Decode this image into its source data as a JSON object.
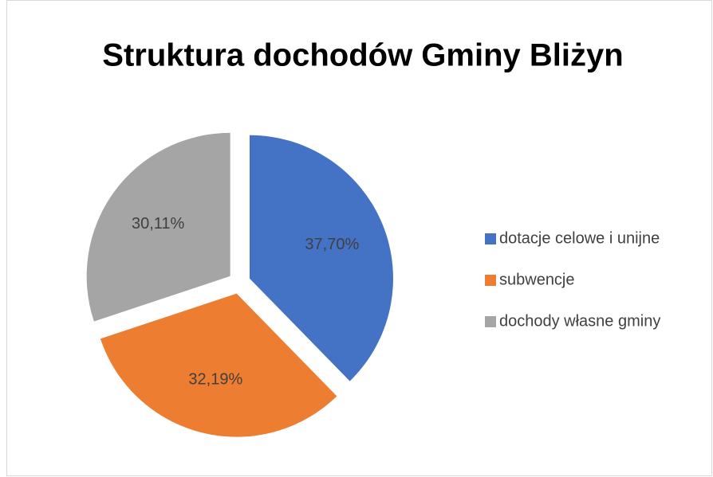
{
  "chart_data": {
    "type": "pie",
    "title": "Struktura dochodów Gminy Bliżyn",
    "categories": [
      "dotacje celowe i unijne",
      "subwencje",
      "dochody własne gminy"
    ],
    "values": [
      37.7,
      32.19,
      30.11
    ],
    "value_labels": [
      "37,70%",
      "32,19%",
      "30,11%"
    ],
    "colors": [
      "#4472c4",
      "#ed7d31",
      "#a5a5a5"
    ],
    "legend": "right"
  }
}
